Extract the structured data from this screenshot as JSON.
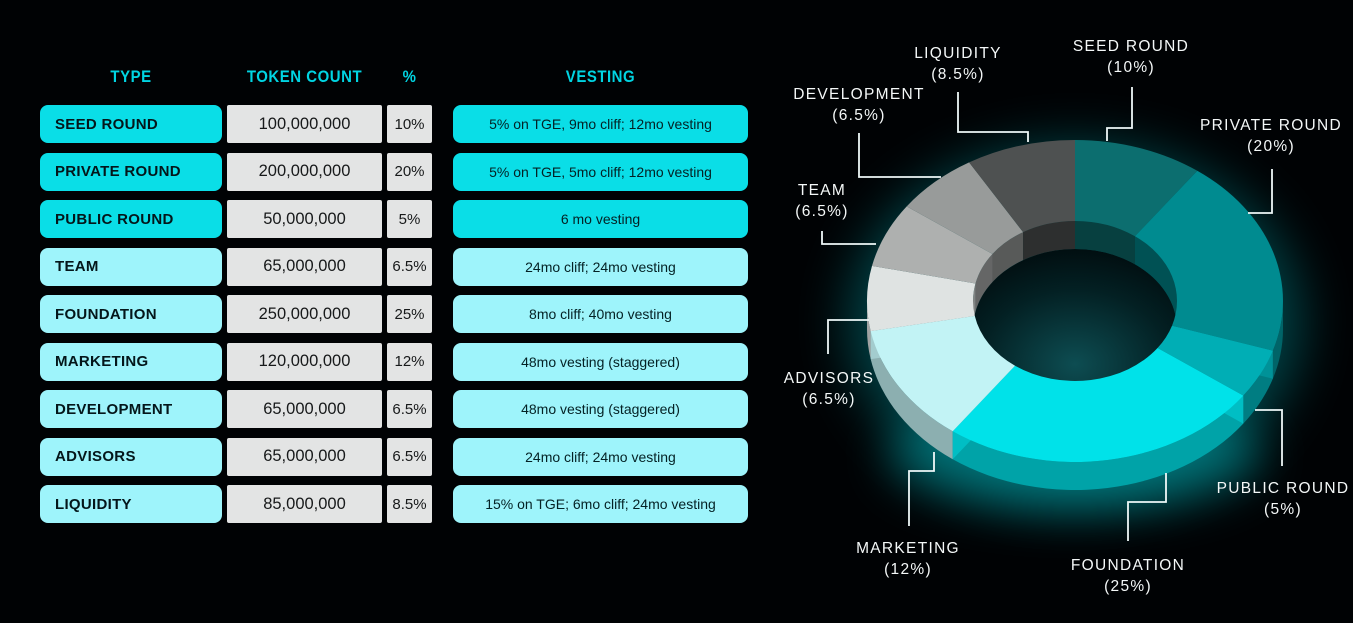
{
  "page": {
    "background": "#000204"
  },
  "table": {
    "headers": [
      "TYPE",
      "TOKEN COUNT",
      "%",
      "VESTING"
    ],
    "header_color": "#00d4e2",
    "tier_colors": {
      "bright": "#0adee7",
      "light": "#9ef4fb",
      "neutral": "#e3e4e4"
    },
    "rows": [
      {
        "type": "SEED ROUND",
        "tokens": "100,000,000",
        "pct": "10%",
        "vesting": "5% on TGE, 9mo cliff; 12mo vesting",
        "tier": "bright"
      },
      {
        "type": "PRIVATE ROUND",
        "tokens": "200,000,000",
        "pct": "20%",
        "vesting": "5% on TGE, 5mo cliff; 12mo vesting",
        "tier": "bright"
      },
      {
        "type": "PUBLIC ROUND",
        "tokens": "50,000,000",
        "pct": "5%",
        "vesting": "6 mo vesting",
        "tier": "bright"
      },
      {
        "type": "TEAM",
        "tokens": "65,000,000",
        "pct": "6.5%",
        "vesting": "24mo cliff; 24mo vesting",
        "tier": "light"
      },
      {
        "type": "FOUNDATION",
        "tokens": "250,000,000",
        "pct": "25%",
        "vesting": "8mo cliff; 40mo vesting",
        "tier": "light"
      },
      {
        "type": "MARKETING",
        "tokens": "120,000,000",
        "pct": "12%",
        "vesting": "48mo vesting (staggered)",
        "tier": "light"
      },
      {
        "type": "DEVELOPMENT",
        "tokens": "65,000,000",
        "pct": "6.5%",
        "vesting": "48mo vesting (staggered)",
        "tier": "light"
      },
      {
        "type": "ADVISORS",
        "tokens": "65,000,000",
        "pct": "6.5%",
        "vesting": "24mo cliff; 24mo vesting",
        "tier": "light"
      },
      {
        "type": "LIQUIDITY",
        "tokens": "85,000,000",
        "pct": "8.5%",
        "vesting": "15% on TGE; 6mo cliff; 24mo vesting",
        "tier": "light"
      }
    ]
  },
  "chart_data": {
    "type": "pie",
    "style": "3d-donut",
    "start_angle_deg": 0,
    "direction": "clockwise",
    "legend_position": "around-labels-with-leader-lines",
    "label_color": "#f4f8f8",
    "leader_line_color": "#eef8f8",
    "glow_color": "#00dfe7",
    "slices": [
      {
        "label": "SEED ROUND",
        "pct": 10,
        "color": "#0c6e6f"
      },
      {
        "label": "PRIVATE ROUND",
        "pct": 20,
        "color": "#008b90"
      },
      {
        "label": "PUBLIC ROUND",
        "pct": 5,
        "color": "#00aeb5"
      },
      {
        "label": "FOUNDATION",
        "pct": 25,
        "color": "#00e2e9"
      },
      {
        "label": "MARKETING",
        "pct": 12,
        "color": "#c2f3f5"
      },
      {
        "label": "ADVISORS",
        "pct": 6.5,
        "color": "#dfe3e2"
      },
      {
        "label": "TEAM",
        "pct": 6.5,
        "color": "#aeb0af"
      },
      {
        "label": "DEVELOPMENT",
        "pct": 6.5,
        "color": "#989b9a"
      },
      {
        "label": "LIQUIDITY",
        "pct": 8.5,
        "color": "#4e5151"
      }
    ]
  }
}
